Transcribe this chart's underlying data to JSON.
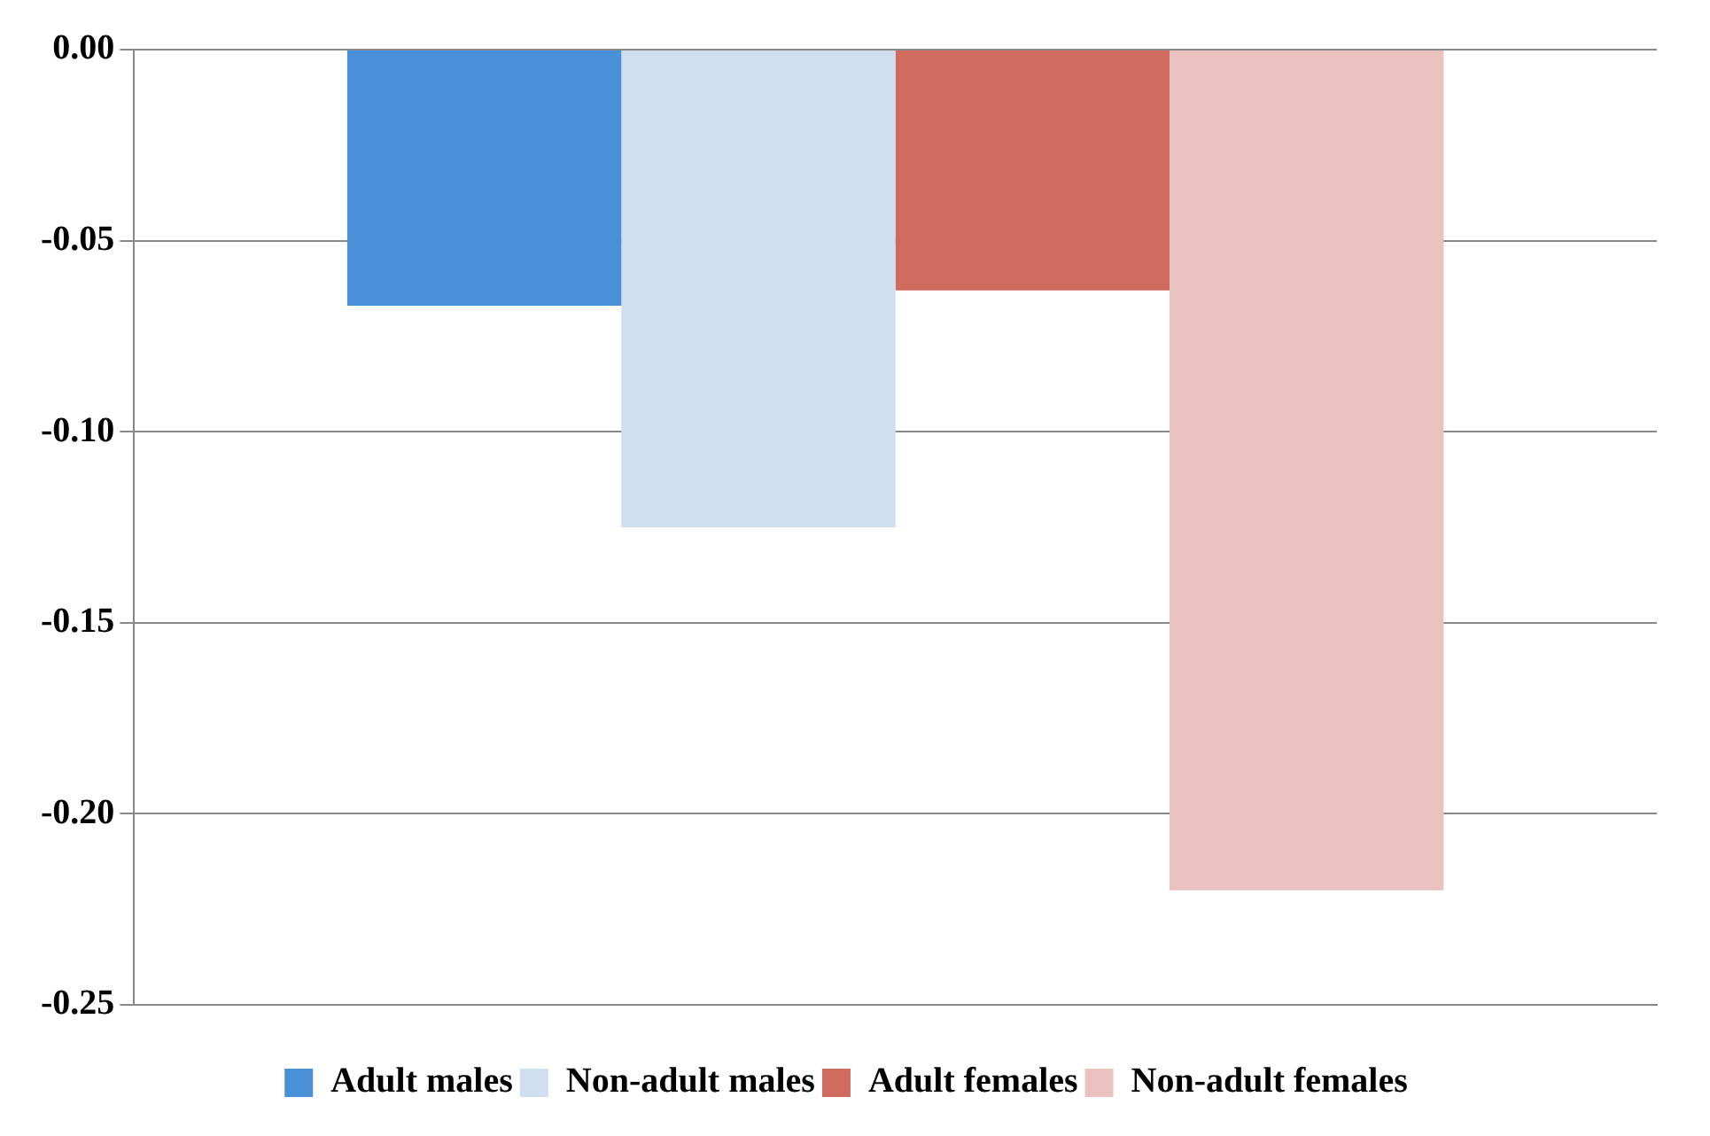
{
  "chart_data": {
    "type": "bar",
    "categories": [
      null
    ],
    "series": [
      {
        "name": "Adult males",
        "color": "#4a90d9",
        "values": [
          -0.067
        ]
      },
      {
        "name": "Non-adult males",
        "color": "#cfdff0",
        "values": [
          -0.125
        ]
      },
      {
        "name": "Adult females",
        "color": "#cf6a5f",
        "values": [
          -0.063
        ]
      },
      {
        "name": "Non-adult females",
        "color": "#eac3c1",
        "values": [
          -0.22
        ]
      }
    ],
    "ylim": [
      -0.25,
      0
    ],
    "yticks": [
      {
        "value": 0,
        "label": "0.00"
      },
      {
        "value": -0.05,
        "label": "-0.05"
      },
      {
        "value": -0.1,
        "label": "-0.10"
      },
      {
        "value": -0.15,
        "label": "-0.15"
      },
      {
        "value": -0.2,
        "label": "-0.20"
      },
      {
        "value": -0.25,
        "label": "-0.25"
      }
    ],
    "grid": "y",
    "legend": "bottom"
  }
}
